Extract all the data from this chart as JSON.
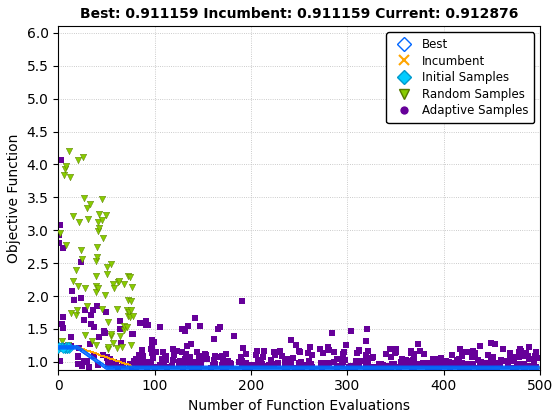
{
  "title": "Best: 0.911159 Incumbent: 0.911159 Current: 0.912876",
  "xlabel": "Number of Function Evaluations",
  "ylabel": "Objective Function",
  "xlim": [
    0,
    500
  ],
  "ylim": [
    0.88,
    6.1
  ],
  "yticks": [
    1.0,
    1.5,
    2.0,
    2.5,
    3.0,
    3.5,
    4.0,
    4.5,
    5.0,
    5.5,
    6.0
  ],
  "xticks": [
    0,
    100,
    200,
    300,
    400,
    500
  ],
  "best_color": "#0066FF",
  "incumbent_color": "#FFA500",
  "initial_color": "#00CCFF",
  "random_color": "#88CC00",
  "adaptive_color": "#660099",
  "bg_color": "#FFFFFF",
  "legend_labels": [
    "Best",
    "Incumbent",
    "Initial Samples",
    "Random Samples",
    "Adaptive Samples"
  ],
  "seed": 12345
}
